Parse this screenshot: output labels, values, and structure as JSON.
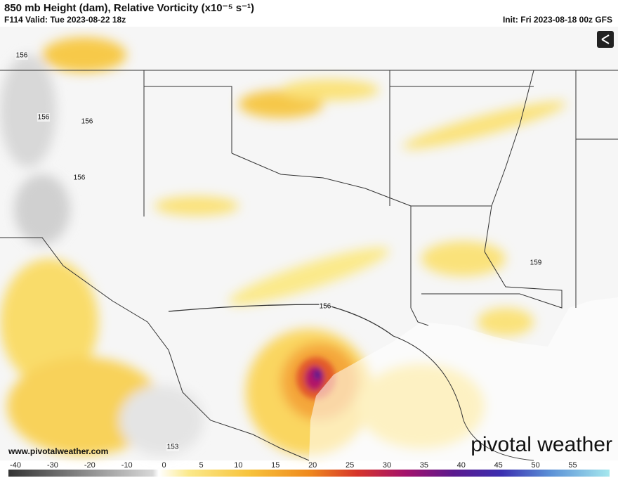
{
  "header": {
    "title": "850 mb Height (dam), Relative Vorticity (x10⁻⁵ s⁻¹)",
    "valid": "F114 Valid: Tue 2023-08-22 18z",
    "init": "Init: Fri 2023-08-18 00z GFS"
  },
  "contour_labels": [
    "156",
    "156",
    "156",
    "156",
    "159",
    "156",
    "153"
  ],
  "footer": {
    "website": "www.pivotalweather.com",
    "logo": "pivotal weather"
  },
  "colorbar": {
    "ticks": [
      -40,
      -30,
      -20,
      -10,
      0,
      5,
      10,
      15,
      20,
      25,
      30,
      35,
      40,
      45,
      50,
      55
    ]
  }
}
